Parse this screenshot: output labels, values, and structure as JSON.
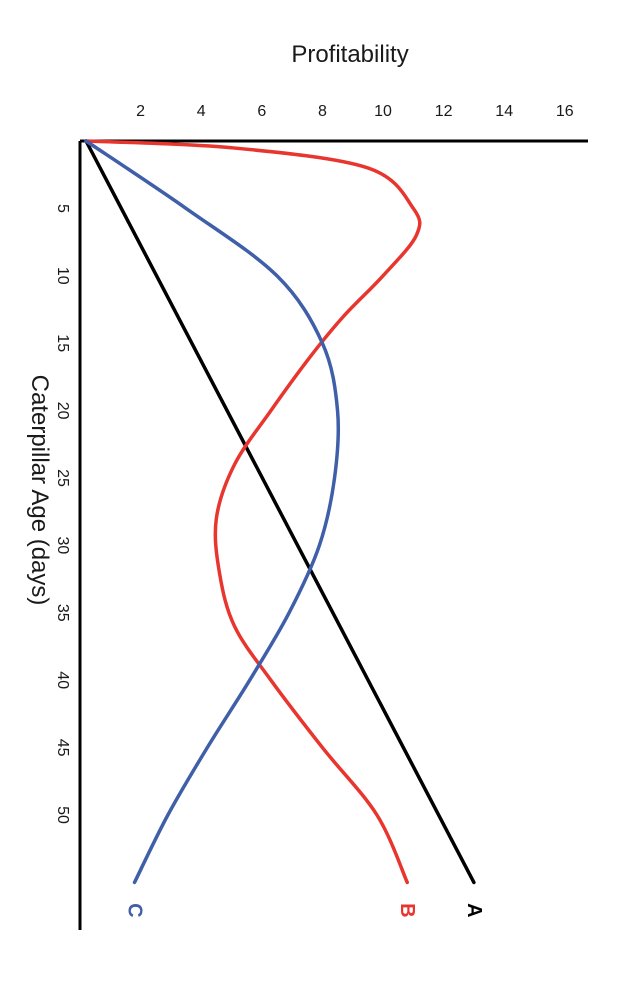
{
  "chart_data": {
    "type": "line",
    "orientation": "rotated-90-clockwise",
    "xlabel": "Profitability",
    "ylabel": "Caterpillar Age (days)",
    "xlim": [
      0,
      17
    ],
    "ylim": [
      0,
      58
    ],
    "x_ticks": [
      "2",
      "4",
      "6",
      "8",
      "10",
      "12",
      "14",
      "16"
    ],
    "y_ticks": [
      "5",
      "10",
      "15",
      "20",
      "25",
      "30",
      "35",
      "40",
      "45",
      "50"
    ],
    "grid": false,
    "legend": "none",
    "series": [
      {
        "name": "A",
        "color": "#000000",
        "points": [
          {
            "age": 0,
            "profit": 0.2
          },
          {
            "age": 55,
            "profit": 13
          }
        ]
      },
      {
        "name": "B",
        "color": "#e8352e",
        "points": [
          {
            "age": 0,
            "profit": 0.2
          },
          {
            "age": 0.5,
            "profit": 5
          },
          {
            "age": 2,
            "profit": 9.5
          },
          {
            "age": 5,
            "profit": 11
          },
          {
            "age": 7,
            "profit": 11.1
          },
          {
            "age": 10,
            "profit": 10
          },
          {
            "age": 13,
            "profit": 8.7
          },
          {
            "age": 16,
            "profit": 7.6
          },
          {
            "age": 20,
            "profit": 6.3
          },
          {
            "age": 24,
            "profit": 5.1
          },
          {
            "age": 28,
            "profit": 4.5
          },
          {
            "age": 32,
            "profit": 4.6
          },
          {
            "age": 36,
            "profit": 5.1
          },
          {
            "age": 40,
            "profit": 6.3
          },
          {
            "age": 45,
            "profit": 8
          },
          {
            "age": 50,
            "profit": 9.8
          },
          {
            "age": 55,
            "profit": 10.8
          }
        ]
      },
      {
        "name": "C",
        "color": "#3f5fa8",
        "points": [
          {
            "age": 0,
            "profit": 0.2
          },
          {
            "age": 5,
            "profit": 3.5
          },
          {
            "age": 10,
            "profit": 6.5
          },
          {
            "age": 15,
            "profit": 8
          },
          {
            "age": 20,
            "profit": 8.5
          },
          {
            "age": 25,
            "profit": 8.4
          },
          {
            "age": 30,
            "profit": 7.9
          },
          {
            "age": 35,
            "profit": 6.9
          },
          {
            "age": 40,
            "profit": 5.6
          },
          {
            "age": 45,
            "profit": 4.2
          },
          {
            "age": 50,
            "profit": 2.9
          },
          {
            "age": 55,
            "profit": 1.8
          }
        ]
      }
    ]
  }
}
